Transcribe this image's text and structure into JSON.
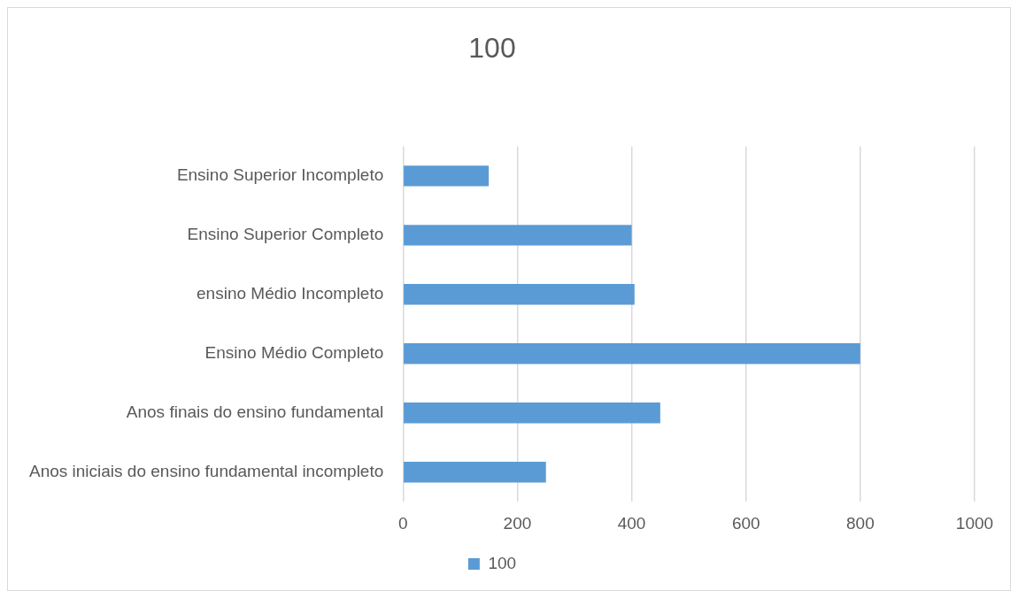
{
  "chart_data": {
    "type": "bar",
    "orientation": "horizontal",
    "title": "100",
    "categories": [
      "Ensino Superior Incompleto",
      "Ensino Superior Completo",
      "ensino Médio Incompleto",
      "Ensino Médio Completo",
      "Anos finais do ensino fundamental",
      "Anos iniciais do ensino fundamental incompleto"
    ],
    "series": [
      {
        "name": "100",
        "color": "#5b9bd5",
        "values": [
          150,
          400,
          405,
          800,
          450,
          250
        ]
      }
    ],
    "xlim": [
      0,
      1000
    ],
    "xticks": [
      0,
      200,
      400,
      600,
      800,
      1000
    ],
    "grid": "x",
    "legend": "bottom"
  }
}
